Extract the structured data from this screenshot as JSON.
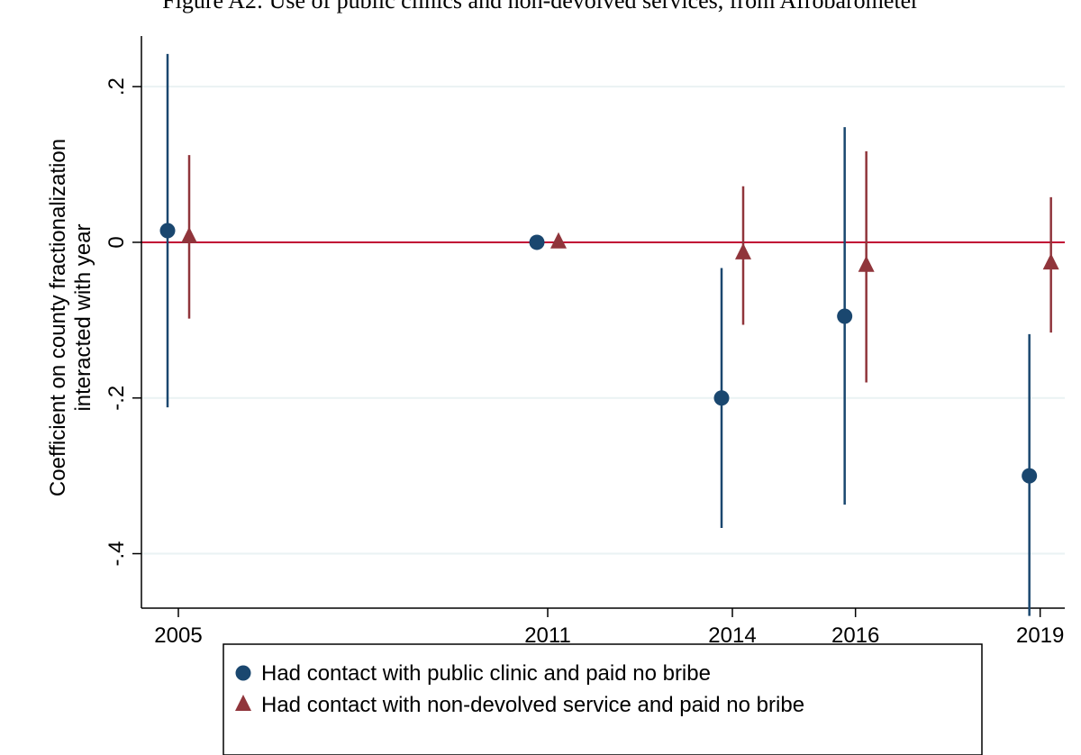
{
  "caption": "Figure A2: Use of public clinics and non-devolved services, from Afrobarometer",
  "colors": {
    "series1": "#1a476f",
    "series2": "#90353b",
    "zero_line": "#c10534",
    "grid": "#eaf2f3"
  },
  "chart_data": {
    "type": "scatter",
    "ylabel_lines": [
      "Coefficient on county fractionalization",
      "interacted with year"
    ],
    "xlabel": "",
    "x_ticks": [
      2005,
      2011,
      2014,
      2016,
      2019
    ],
    "y_ticks": [
      0.2,
      0,
      -0.2,
      -0.4
    ],
    "y_tick_labels": [
      ".2",
      "0",
      "-.2",
      "-.4"
    ],
    "ylim": [
      -0.47,
      0.265
    ],
    "xlim": [
      2004.4,
      2019.4
    ],
    "grid": true,
    "reference_line_y": 0,
    "legend_position": "bottom",
    "series": [
      {
        "name": "Had contact with public clinic and paid no bribe",
        "marker": "circle",
        "x": [
          2005,
          2011,
          2014,
          2016,
          2019
        ],
        "y": [
          0.015,
          0.0,
          -0.2,
          -0.095,
          -0.3
        ],
        "ci_low": [
          -0.212,
          0.0,
          -0.367,
          -0.337,
          -0.48
        ],
        "ci_high": [
          0.242,
          0.0,
          -0.033,
          0.148,
          -0.118
        ]
      },
      {
        "name": "Had contact with non-devolved service and paid no bribe",
        "marker": "triangle",
        "x": [
          2005,
          2011,
          2014,
          2016,
          2019
        ],
        "y": [
          0.007,
          0.0,
          -0.014,
          -0.03,
          -0.027
        ],
        "ci_low": [
          -0.098,
          0.0,
          -0.106,
          -0.18,
          -0.116
        ],
        "ci_high": [
          0.112,
          0.0,
          0.072,
          0.117,
          0.058
        ]
      }
    ]
  }
}
